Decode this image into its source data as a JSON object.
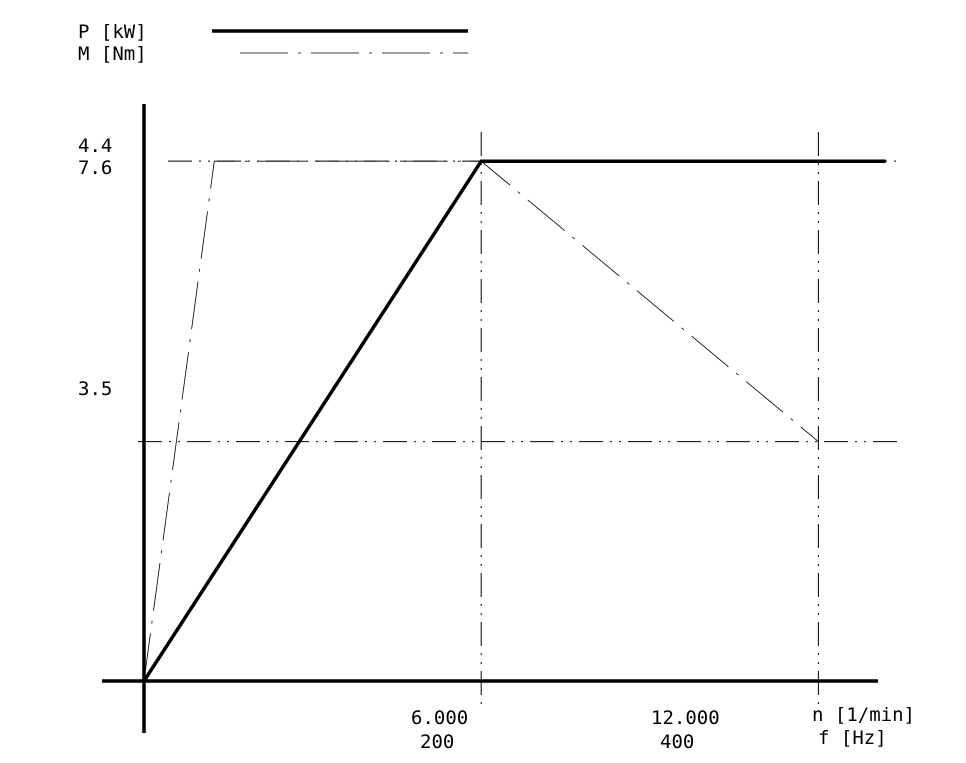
{
  "chart_data": {
    "type": "line",
    "title": "",
    "legend": {
      "placement": "top-left",
      "entries": [
        {
          "label": "P [kW]",
          "series": "P",
          "style": "solid-thick"
        },
        {
          "label": "M [Nm]",
          "series": "M",
          "style": "dash-dot-thin"
        }
      ]
    },
    "x_axis": {
      "label_n": "n [1/min]",
      "label_f": "f [Hz]",
      "range_n": [
        0,
        13500
      ],
      "ticks": [
        {
          "n_value": 6000,
          "n_label": "6.000",
          "f_label": "200"
        },
        {
          "n_value": 12000,
          "n_label": "12.000",
          "f_label": "400"
        }
      ]
    },
    "y_axis": {
      "range_m": [
        0,
        8.8
      ],
      "ticks": [
        {
          "m_value": 7.6,
          "p_label": "4.4",
          "m_label": "7.6"
        },
        {
          "m_value": 3.5,
          "p_label": "",
          "m_label": "3.5"
        }
      ]
    },
    "series": [
      {
        "name": "P",
        "unit": "kW",
        "x": [
          0,
          6000,
          13200
        ],
        "y": [
          0,
          4.4,
          4.4
        ]
      },
      {
        "name": "M",
        "unit": "Nm",
        "x": [
          0,
          1250,
          6000,
          12000
        ],
        "y": [
          0,
          7.6,
          7.6,
          3.5
        ]
      }
    ],
    "reference_lines": {
      "horizontal_m": [
        7.6,
        3.5
      ],
      "vertical_n": [
        6000,
        12000
      ]
    },
    "grid": false
  }
}
